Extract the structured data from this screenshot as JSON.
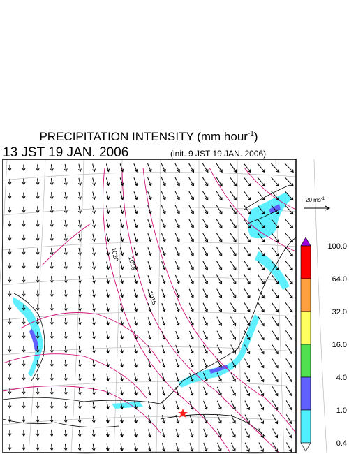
{
  "title": {
    "main": "PRECIPITATION INTENSITY (mm hour",
    "superscript": "-1",
    "close": ")"
  },
  "subtitle": {
    "time": "13 JST 19 JAN. 2006",
    "init": "(init. 9 JST 19 JAN. 2006)"
  },
  "wind_reference": {
    "label": "20 ms",
    "superscript": "-1"
  },
  "isobar_labels": [
    "1020",
    "1018",
    "1016"
  ],
  "colorbar": {
    "labels": [
      "100.0",
      "64.0",
      "32.0",
      "16.0",
      "4.0",
      "1.0",
      "0.4"
    ],
    "colors": [
      "#a000e0",
      "#ff0000",
      "#ffa040",
      "#ffff60",
      "#50e050",
      "#6060ff",
      "#50f0ff",
      "#ffffff"
    ]
  }
}
